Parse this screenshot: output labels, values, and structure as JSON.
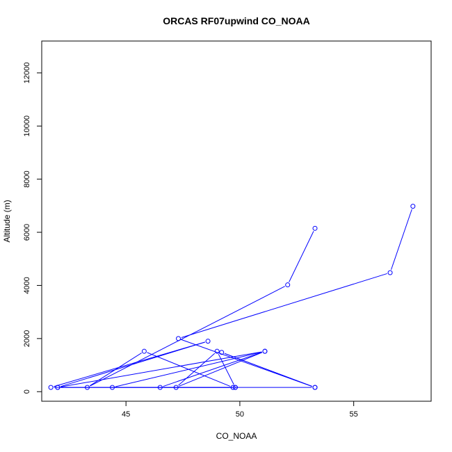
{
  "chart_data": {
    "type": "line",
    "title": "ORCAS RF07upwind CO_NOAA",
    "xlabel": "CO_NOAA",
    "ylabel": "Altitude (m)",
    "xlim": [
      41.3,
      58.4
    ],
    "ylim": [
      -360,
      13200
    ],
    "x_ticks": [
      45,
      50,
      55
    ],
    "y_ticks": [
      0,
      2000,
      4000,
      6000,
      8000,
      10000,
      12000
    ],
    "grid": false,
    "color": "#0000ff",
    "markers": "open-circle",
    "series": [
      {
        "points": [
          {
            "x": 53.3,
            "y": 6150
          },
          {
            "x": 52.1,
            "y": 4020
          },
          {
            "x": 43.3,
            "y": 160
          },
          {
            "x": 45.8,
            "y": 1520
          },
          {
            "x": 49.7,
            "y": 160
          },
          {
            "x": 41.7,
            "y": 160
          },
          {
            "x": 48.6,
            "y": 1900
          },
          {
            "x": 42.0,
            "y": 160
          },
          {
            "x": 51.1,
            "y": 1520
          },
          {
            "x": 46.5,
            "y": 160
          },
          {
            "x": 49.8,
            "y": 160
          },
          {
            "x": 44.4,
            "y": 160
          },
          {
            "x": 51.1,
            "y": 1520
          },
          {
            "x": 47.2,
            "y": 160
          },
          {
            "x": 49.0,
            "y": 1520
          },
          {
            "x": 49.8,
            "y": 160
          },
          {
            "x": 42.0,
            "y": 160
          },
          {
            "x": 53.3,
            "y": 160
          },
          {
            "x": 49.2,
            "y": 1480
          },
          {
            "x": 53.3,
            "y": 160
          },
          {
            "x": 47.3,
            "y": 2000
          },
          {
            "x": 56.6,
            "y": 4480
          },
          {
            "x": 57.6,
            "y": 6980
          }
        ]
      }
    ]
  }
}
